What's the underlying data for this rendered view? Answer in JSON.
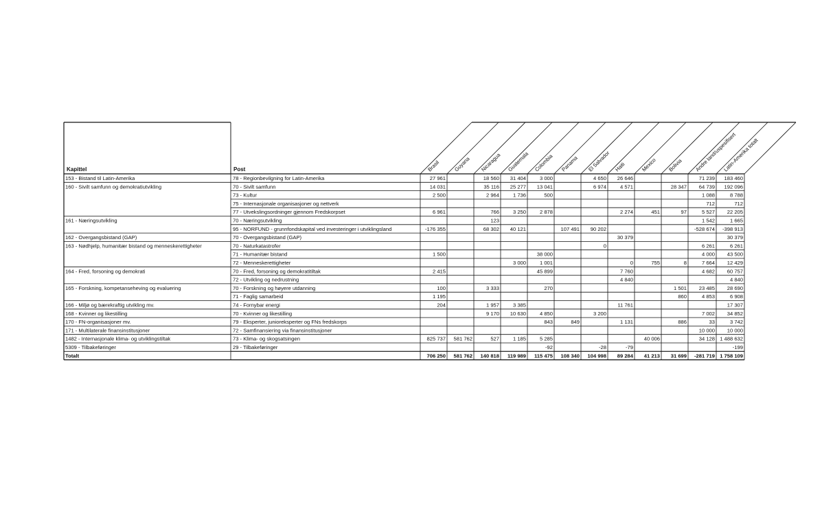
{
  "headers": {
    "kapittel": "Kapittel",
    "post": "Post",
    "countries": [
      "Brasil",
      "Guyana",
      "Nicaragua",
      "Guatemala",
      "Colombia",
      "Panama",
      "El Salvador",
      "Haiti",
      "Mexico",
      "Bolivia",
      "Andre land/uspesifisert",
      "Latin-Amerika totalt"
    ]
  },
  "rows": [
    {
      "kapittel": "153 - Bistand til Latin-Amerika",
      "post": "78 - Regionbevilgning for Latin-Amerika",
      "values": [
        "27 961",
        "",
        "18 560",
        "31 404",
        "3 000",
        "",
        "4 650",
        "26 646",
        "",
        "",
        "71 239",
        "183 460"
      ]
    },
    {
      "kapittel": "160 - Sivilt samfunn og demokratiutvikling",
      "post": "70 - Sivilt samfunn",
      "values": [
        "14 031",
        "",
        "35 116",
        "25 277",
        "13 041",
        "",
        "6 974",
        "4 571",
        "",
        "28 347",
        "64 739",
        "192 096"
      ]
    },
    {
      "kapittel": "",
      "post": "73 - Kultur",
      "values": [
        "2 500",
        "",
        "2 964",
        "1 736",
        "500",
        "",
        "",
        "",
        "",
        "",
        "1 088",
        "8 788"
      ]
    },
    {
      "kapittel": "",
      "post": "75 - Internasjonale organisasjoner og nettverk",
      "values": [
        "",
        "",
        "",
        "",
        "",
        "",
        "",
        "",
        "",
        "",
        "712",
        "712"
      ]
    },
    {
      "kapittel": "",
      "post": "77 - Utvekslingsordninger gjennom Fredskorpset",
      "values": [
        "6 961",
        "",
        "766",
        "3 250",
        "2 878",
        "",
        "",
        "2 274",
        "451",
        "97",
        "5 527",
        "22 205"
      ]
    },
    {
      "kapittel": "161 - Næringsutvikling",
      "post": "70 - Næringsutvikling",
      "values": [
        "",
        "",
        "123",
        "",
        "",
        "",
        "",
        "",
        "",
        "",
        "1 542",
        "1 665"
      ]
    },
    {
      "kapittel": "",
      "post": "95 - NORFUND - grunnfondskapital ved investeringer i utviklingsland",
      "values": [
        "-176 355",
        "",
        "68 302",
        "40 121",
        "",
        "107 491",
        "90 202",
        "",
        "",
        "",
        "-528 674",
        "-398 913"
      ]
    },
    {
      "kapittel": "162 - Overgangsbistand (GAP)",
      "post": "70 - Overgangsbistand (GAP)",
      "values": [
        "",
        "",
        "",
        "",
        "",
        "",
        "",
        "30 379",
        "",
        "",
        "",
        "30 379"
      ]
    },
    {
      "kapittel": "163 - Nødhjelp, humanitær bistand og menneskerettigheter",
      "post": "70 - Naturkatastrofer",
      "values": [
        "",
        "",
        "",
        "",
        "",
        "",
        "0",
        "",
        "",
        "",
        "6 261",
        "6 261"
      ]
    },
    {
      "kapittel": "",
      "post": "71 - Humanitær bistand",
      "values": [
        "1 500",
        "",
        "",
        "",
        "38 000",
        "",
        "",
        "",
        "",
        "",
        "4 000",
        "43 500"
      ]
    },
    {
      "kapittel": "",
      "post": "72 - Menneskerettigheter",
      "values": [
        "",
        "",
        "",
        "3 000",
        "1 001",
        "",
        "",
        "0",
        "755",
        "8",
        "7 664",
        "12 429"
      ]
    },
    {
      "kapittel": "164 - Fred, forsoning og demokrati",
      "post": "70 - Fred, forsoning og demokratitiltak",
      "values": [
        "2 415",
        "",
        "",
        "",
        "45 899",
        "",
        "",
        "7 760",
        "",
        "",
        "4 682",
        "60 757"
      ]
    },
    {
      "kapittel": "",
      "post": "72 - Utvikling og nedrustning",
      "values": [
        "",
        "",
        "",
        "",
        "",
        "",
        "",
        "4 840",
        "",
        "",
        "",
        "4 840"
      ]
    },
    {
      "kapittel": "165 - Forskning, kompetanseheving og evaluering",
      "post": "70 - Forskning og høyere utdanning",
      "values": [
        "100",
        "",
        "3 333",
        "",
        "270",
        "",
        "",
        "",
        "",
        "1 501",
        "23 485",
        "28 690"
      ]
    },
    {
      "kapittel": "",
      "post": "71 - Faglig samarbeid",
      "values": [
        "1 195",
        "",
        "",
        "",
        "",
        "",
        "",
        "",
        "",
        "860",
        "4 853",
        "6 908"
      ]
    },
    {
      "kapittel": "166 - Miljø og bærekraftig utvikling mv.",
      "post": "74 - Fornybar energi",
      "values": [
        "204",
        "",
        "1 957",
        "3 385",
        "",
        "",
        "",
        "11 761",
        "",
        "",
        "",
        "17 307"
      ]
    },
    {
      "kapittel": "168 - Kvinner og likestilling",
      "post": "70 - Kvinner og likestilling",
      "values": [
        "",
        "",
        "9 170",
        "10 630",
        "4 850",
        "",
        "3 200",
        "",
        "",
        "",
        "7 002",
        "34 852"
      ]
    },
    {
      "kapittel": "170 - FN-organisasjoner mv.",
      "post": "79 - Eksperter, junioreksperter og FNs fredskorps",
      "values": [
        "",
        "",
        "",
        "",
        "843",
        "849",
        "",
        "1 131",
        "",
        "886",
        "33",
        "3 742"
      ]
    },
    {
      "kapittel": "171 - Multilaterale finansinstitusjoner",
      "post": "72 - Samfinansiering via finansinstitusjoner",
      "values": [
        "",
        "",
        "",
        "",
        "",
        "",
        "",
        "",
        "",
        "",
        "10 000",
        "10 000"
      ]
    },
    {
      "kapittel": "1482 - Internasjonale klima- og utviklingstiltak",
      "post": "73 - Klima- og skogsatsingen",
      "values": [
        "825 737",
        "581 762",
        "527",
        "1 185",
        "5 285",
        "",
        "",
        "",
        "40 006",
        "",
        "34 128",
        "1 488 632"
      ]
    },
    {
      "kapittel": "5309 - Tilbakeføringer",
      "post": "29 - Tilbakeføringer",
      "values": [
        "",
        "",
        "",
        "",
        "-92",
        "",
        "-28",
        "-79",
        "",
        "",
        "",
        "-199"
      ]
    }
  ],
  "total": {
    "label": "Totalt",
    "values": [
      "706 250",
      "581 762",
      "140 818",
      "119 989",
      "115 475",
      "108 340",
      "104 998",
      "89 284",
      "41 213",
      "31 699",
      "-281 719",
      "1 758 109"
    ]
  }
}
